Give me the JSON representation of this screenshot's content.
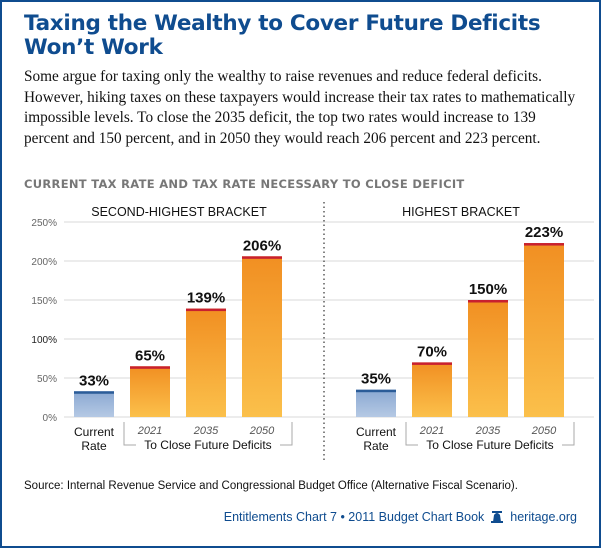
{
  "title": "Taxing the Wealthy to Cover Future Deficits Won’t Work",
  "body": "Some argue for taxing only the wealthy to raise revenues and reduce federal deficits. However, hiking taxes on these taxpayers would increase their tax rates to mathematically impossible levels. To close the 2035 deficit, the top two rates would increase to 139 percent and 150 percent, and in 2050 they would reach 206 percent and 223 percent.",
  "chart_heading": "CURRENT TAX RATE AND TAX RATE NECESSARY TO CLOSE DEFICIT",
  "source_label": "Source:",
  "source_text": "Internal Revenue Service and Congressional Budget Office (Alternative Fiscal Scenario).",
  "footer": {
    "text": "Entitlements Chart 7 • 2011 Budget Chart Book",
    "site": "heritage.org",
    "icon": "liberty-bell-icon"
  },
  "colors": {
    "brand": "#0f4c8f",
    "current_bar": "#9bb5d8",
    "current_cap": "#2b5c98",
    "future_bar": "#f39a2a",
    "future_cap": "#c8202f"
  },
  "chart_data": {
    "type": "bar",
    "ylim": [
      0,
      250
    ],
    "yticks": [
      "0%",
      "50%",
      "100%",
      "150%",
      "200%",
      "250%"
    ],
    "grid": true,
    "panels": [
      {
        "title": "SECOND-HIGHEST BRACKET",
        "categories": [
          "Current Rate",
          "2021",
          "2035",
          "2050"
        ],
        "values": [
          33,
          65,
          139,
          206
        ],
        "labels": [
          "33%",
          "65%",
          "139%",
          "206%"
        ]
      },
      {
        "title": "HIGHEST BRACKET",
        "categories": [
          "Current Rate",
          "2021",
          "2035",
          "2050"
        ],
        "values": [
          35,
          70,
          150,
          223
        ],
        "labels": [
          "35%",
          "70%",
          "150%",
          "223%"
        ]
      }
    ],
    "current_label": [
      "Current",
      "Rate"
    ],
    "group_label": "To Close Future Deficits"
  }
}
